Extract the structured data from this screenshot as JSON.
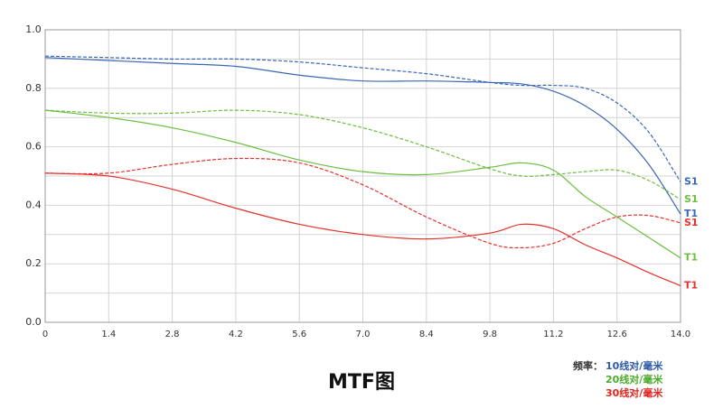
{
  "chart_data": {
    "type": "line",
    "title": "MTF图",
    "x": [
      0,
      1.4,
      2.8,
      4.2,
      5.6,
      7.0,
      8.4,
      9.8,
      10.5,
      11.2,
      11.9,
      12.6,
      13.3,
      14.0
    ],
    "xlim": [
      0,
      14
    ],
    "xticks": [
      0,
      1.4,
      2.8,
      4.2,
      5.6,
      {
        "value": 7,
        "label": "7.0"
      },
      8.4,
      9.8,
      11.2,
      12.6,
      {
        "value": 14,
        "label": "14.0"
      }
    ],
    "ylim": [
      0,
      1
    ],
    "yticks": [
      {
        "value": 0,
        "label": "0.0"
      },
      0.2,
      0.4,
      0.6,
      0.8,
      {
        "value": 1,
        "label": "1.0"
      }
    ],
    "ygrid_minor": [
      0.1,
      0.3,
      0.5,
      0.7,
      0.9
    ],
    "grid": true,
    "series": [
      {
        "name": "T1",
        "color": "#3a67b5",
        "dashed": false,
        "values": [
          0.905,
          0.895,
          0.885,
          0.875,
          0.845,
          0.825,
          0.825,
          0.82,
          0.815,
          0.79,
          0.74,
          0.66,
          0.54,
          0.37
        ]
      },
      {
        "name": "S1",
        "color": "#3a67b5",
        "dashed": true,
        "values": [
          0.91,
          0.905,
          0.9,
          0.9,
          0.89,
          0.87,
          0.85,
          0.82,
          0.81,
          0.81,
          0.8,
          0.75,
          0.65,
          0.48
        ]
      },
      {
        "name": "T1",
        "color": "#6cbf3f",
        "dashed": false,
        "values": [
          0.725,
          0.7,
          0.665,
          0.615,
          0.555,
          0.515,
          0.505,
          0.53,
          0.545,
          0.52,
          0.43,
          0.36,
          0.29,
          0.22
        ]
      },
      {
        "name": "S1",
        "color": "#6cbf3f",
        "dashed": true,
        "values": [
          0.725,
          0.715,
          0.715,
          0.725,
          0.71,
          0.665,
          0.6,
          0.525,
          0.5,
          0.505,
          0.515,
          0.52,
          0.485,
          0.42
        ]
      },
      {
        "name": "T1",
        "color": "#e8302a",
        "dashed": false,
        "values": [
          0.51,
          0.5,
          0.455,
          0.39,
          0.335,
          0.3,
          0.285,
          0.305,
          0.335,
          0.32,
          0.265,
          0.22,
          0.17,
          0.125
        ]
      },
      {
        "name": "S1",
        "color": "#e8302a",
        "dashed": true,
        "values": [
          0.51,
          0.51,
          0.54,
          0.56,
          0.545,
          0.47,
          0.36,
          0.27,
          0.255,
          0.27,
          0.32,
          0.36,
          0.365,
          0.34
        ]
      }
    ],
    "legend": {
      "title": "频率：",
      "items": [
        {
          "label": "10线对/毫米",
          "color": "#2e5aa8"
        },
        {
          "label": "20线对/毫米",
          "color": "#4caa2a"
        },
        {
          "label": "30线对/毫米",
          "color": "#e0241e"
        }
      ]
    }
  }
}
